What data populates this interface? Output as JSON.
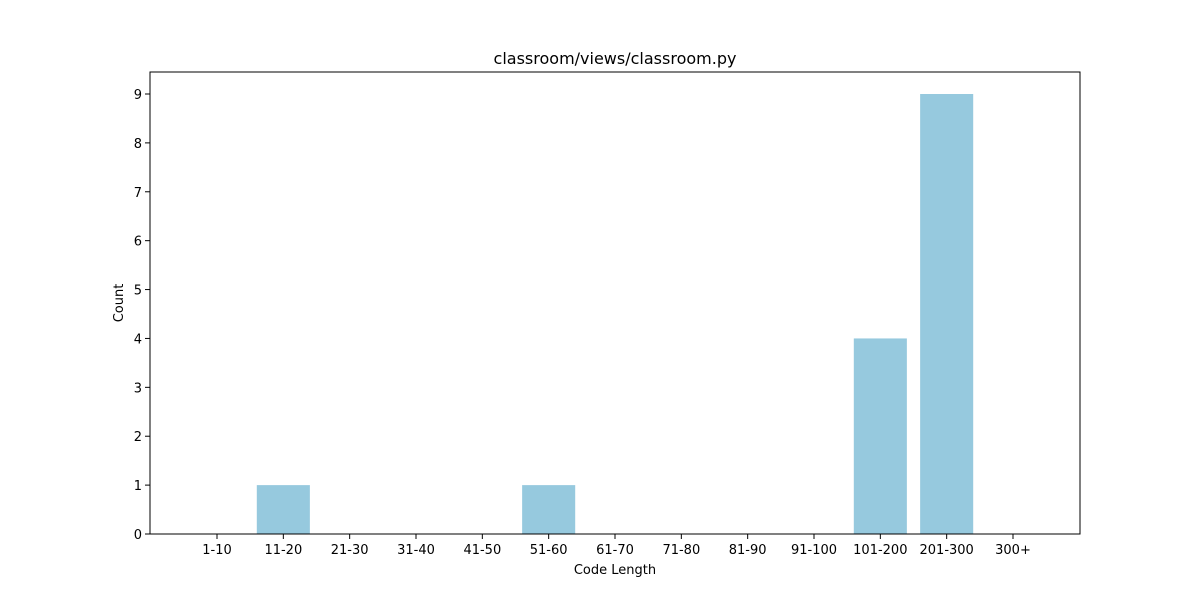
{
  "chart_data": {
    "type": "bar",
    "title": "classroom/views/classroom.py",
    "xlabel": "Code Length",
    "ylabel": "Count",
    "categories": [
      "1-10",
      "11-20",
      "21-30",
      "31-40",
      "41-50",
      "51-60",
      "61-70",
      "71-80",
      "81-90",
      "91-100",
      "101-200",
      "201-300",
      "300+"
    ],
    "values": [
      0,
      1,
      0,
      0,
      0,
      1,
      0,
      0,
      0,
      0,
      4,
      9,
      0
    ],
    "ylim": [
      0,
      9.45
    ],
    "yticks": [
      0,
      1,
      2,
      3,
      4,
      5,
      6,
      7,
      8,
      9
    ],
    "grid": false,
    "bar_color": "#96c9de"
  }
}
